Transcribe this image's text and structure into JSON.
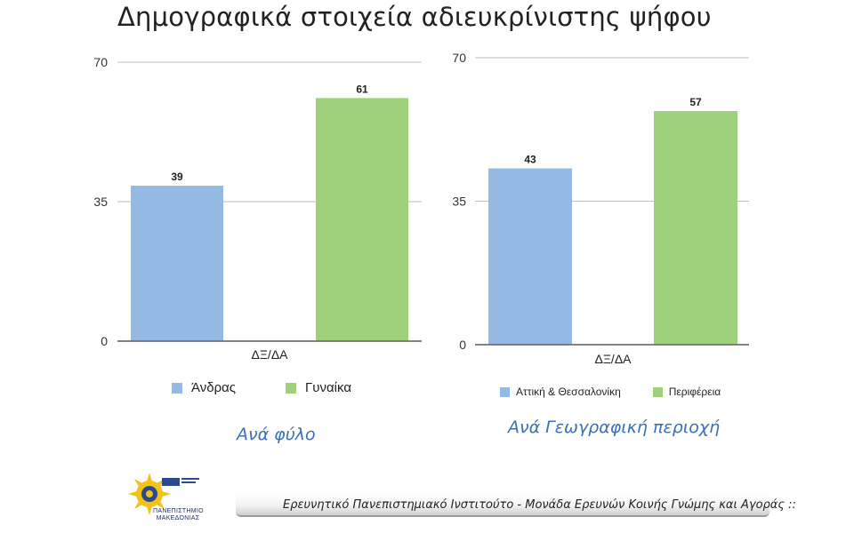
{
  "page": {
    "title": "Δημογραφικά στοιχεία αδιευκρίνιστης ψήφου",
    "footer": "Ερευνητικό Πανεπιστημιακό Ινστιτούτο - Μονάδα Ερευνών Κοινής Γνώμης και Αγοράς ::",
    "logo_text": "ΠΑΝΕΠΙΣΤΗΜΙΟ ΜΑΚΕΔΟΝΙΑΣ"
  },
  "chart_data": [
    {
      "type": "bar",
      "title": "Ανά φύλο",
      "categories": [
        "ΔΞ/ΔΑ"
      ],
      "series": [
        {
          "name": "Άνδρας",
          "values": [
            39
          ],
          "color": "#94b9e3"
        },
        {
          "name": "Γυναίκα",
          "values": [
            61
          ],
          "color": "#9fd07c"
        }
      ],
      "yticks": [
        "0",
        "35",
        "70"
      ],
      "ylim": [
        0,
        70
      ],
      "grid": true,
      "legend": "bottom"
    },
    {
      "type": "bar",
      "title": "Ανά Γεωγραφική περιοχή",
      "categories": [
        "ΔΞ/ΔΑ"
      ],
      "series": [
        {
          "name": "Αττική & Θεσσαλονίκη",
          "values": [
            43
          ],
          "color": "#94b9e3"
        },
        {
          "name": "Περιφέρεια",
          "values": [
            57
          ],
          "color": "#9fd07c"
        }
      ],
      "yticks": [
        "0",
        "35",
        "70"
      ],
      "ylim": [
        0,
        70
      ],
      "grid": true,
      "legend": "bottom"
    }
  ]
}
